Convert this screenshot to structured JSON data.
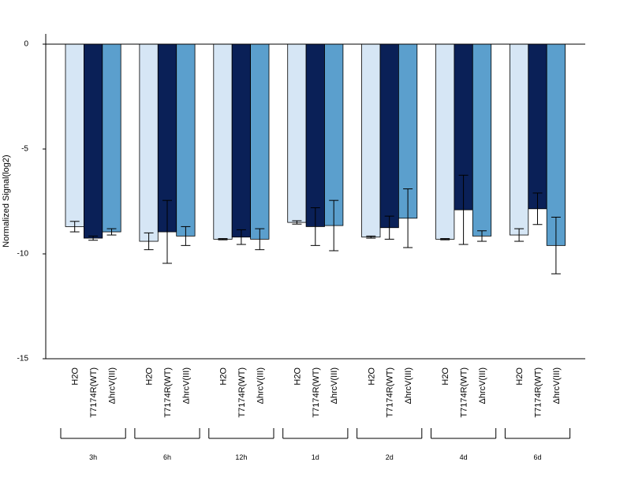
{
  "chart_data": {
    "type": "bar",
    "title": "",
    "ylabel": "Normalized Signal(log2)",
    "xlabel": "",
    "ylim": [
      -15,
      0
    ],
    "yticks": [
      0,
      -5,
      -10,
      -15
    ],
    "yticks_labels": [
      "0",
      "-5",
      "-10",
      "-15"
    ],
    "groups": [
      "3h",
      "6h",
      "12h",
      "1d",
      "2d",
      "4d",
      "6d"
    ],
    "bar_labels": [
      "H2O",
      "T7174R(WT)",
      "ΔhrcV(III)"
    ],
    "series": [
      {
        "label": "H2O",
        "color": "#d6e6f5",
        "values": [
          -8.7,
          -9.4,
          -9.3,
          -8.5,
          -9.2,
          -9.3,
          -9.1
        ],
        "errors": [
          0.25,
          0.4,
          0.03,
          0.08,
          0.05,
          0.03,
          0.3
        ]
      },
      {
        "label": "T7174R(WT)",
        "color": "#0a2057",
        "values": [
          -9.25,
          -8.95,
          -9.2,
          -8.7,
          -8.75,
          -7.9,
          -7.85
        ],
        "errors": [
          0.1,
          1.5,
          0.35,
          0.9,
          0.55,
          1.65,
          0.75
        ]
      },
      {
        "label": "ΔhrcV(III)",
        "color": "#5b9fcd",
        "values": [
          -8.95,
          -9.15,
          -9.3,
          -8.65,
          -8.3,
          -9.15,
          -9.6
        ],
        "errors": [
          0.15,
          0.45,
          0.5,
          1.2,
          1.4,
          0.25,
          1.35
        ]
      }
    ]
  }
}
